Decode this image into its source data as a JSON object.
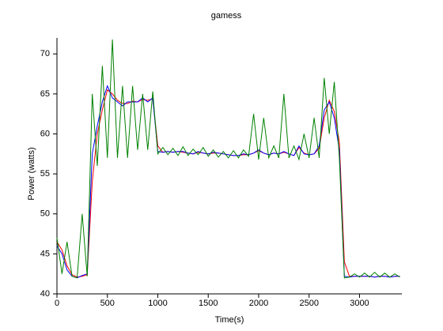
{
  "chart_data": {
    "type": "line",
    "title": "gamess",
    "xlabel": "Time(s)",
    "ylabel": "Power (watts)",
    "x": [
      0,
      50,
      100,
      150,
      200,
      250,
      300,
      350,
      400,
      450,
      500,
      550,
      600,
      650,
      700,
      750,
      800,
      850,
      900,
      950,
      1000,
      1050,
      1100,
      1150,
      1200,
      1250,
      1300,
      1350,
      1400,
      1450,
      1500,
      1550,
      1600,
      1650,
      1700,
      1750,
      1800,
      1850,
      1900,
      1950,
      2000,
      2050,
      2100,
      2150,
      2200,
      2250,
      2300,
      2350,
      2400,
      2450,
      2500,
      2550,
      2600,
      2650,
      2700,
      2750,
      2800,
      2850,
      2900,
      2950,
      3000,
      3050,
      3100,
      3150,
      3200,
      3250,
      3300,
      3350,
      3400
    ],
    "series": [
      {
        "color": "#ff0000",
        "values": [
          46.5,
          45.5,
          43.5,
          42.4,
          42.1,
          42.2,
          42.4,
          54,
          60,
          63,
          65.5,
          65,
          64.2,
          63.8,
          63.8,
          64.1,
          64,
          64.3,
          64.2,
          64.4,
          58.5,
          57.7,
          57.8,
          57.7,
          57.8,
          57.7,
          57.6,
          57.5,
          57.7,
          57.6,
          57.5,
          57.6,
          57.6,
          57.5,
          57.4,
          57.3,
          57.3,
          57.4,
          57.4,
          57.6,
          57.9,
          57.6,
          57.4,
          57.6,
          57.5,
          57.7,
          57.5,
          57.3,
          58.3,
          57.6,
          57.4,
          57.5,
          58.2,
          62,
          64.2,
          62.8,
          59,
          44,
          42.2,
          42.2,
          42.2,
          42.2,
          42.2,
          42.1,
          42.2,
          42.2,
          42.1,
          42.2,
          42.2
        ]
      },
      {
        "color": "#0000ff",
        "values": [
          46,
          45,
          43,
          42.2,
          42,
          42.3,
          42.5,
          57.5,
          61,
          64,
          66,
          64.5,
          64,
          63.5,
          64,
          64,
          64,
          64.5,
          64,
          64.5,
          57.8,
          57.7,
          57.8,
          57.7,
          57.8,
          57.8,
          57.6,
          57.5,
          57.8,
          57.6,
          57.5,
          57.7,
          57.6,
          57.5,
          57.4,
          57.3,
          57.3,
          57.5,
          57.4,
          57.6,
          58,
          57.6,
          57.4,
          57.6,
          57.5,
          57.8,
          57.5,
          57.3,
          58.5,
          57.5,
          57.4,
          57.5,
          58.5,
          63,
          64,
          62,
          58,
          42.2,
          42.1,
          42.2,
          42.2,
          42.2,
          42.2,
          42.1,
          42.2,
          42.2,
          42.1,
          42.2,
          42.2
        ]
      },
      {
        "color": "#008000",
        "values": [
          47,
          42.5,
          46.5,
          42.2,
          42,
          50,
          42.2,
          65,
          56,
          68.5,
          57,
          71.8,
          57,
          66,
          57,
          66,
          58,
          65,
          58,
          65.3,
          57.5,
          58.3,
          57.4,
          58.2,
          57.3,
          58.4,
          57.3,
          58.1,
          57.4,
          58.3,
          57.2,
          58,
          57.1,
          57.8,
          57,
          57.9,
          57,
          58,
          57.2,
          62.5,
          56.8,
          62,
          57,
          58.5,
          57,
          65,
          57,
          58.5,
          56.8,
          60,
          57,
          62,
          57,
          67,
          60,
          66.5,
          57,
          42,
          42.1,
          42.5,
          42.1,
          42.6,
          42.1,
          42.7,
          42.1,
          42.6,
          42.1,
          42.5,
          42.1
        ]
      }
    ],
    "xlim": [
      0,
      3420
    ],
    "ylim": [
      40,
      72
    ],
    "xticks": [
      0,
      500,
      1000,
      1500,
      2000,
      2500,
      3000
    ],
    "yticks": [
      40,
      45,
      50,
      55,
      60,
      65,
      70
    ]
  }
}
